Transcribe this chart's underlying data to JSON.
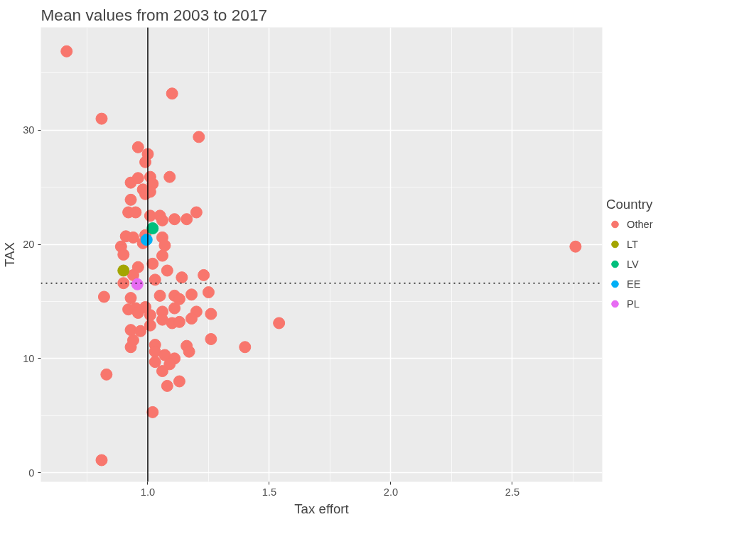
{
  "chart_data": {
    "type": "scatter",
    "title": "Mean values from 2003 to 2017",
    "xlabel": "Tax effort",
    "ylabel": "TAX",
    "legend_title": "Country",
    "xlim": [
      0.56,
      2.87
    ],
    "ylim": [
      -0.8,
      39.0
    ],
    "xticks": [
      {
        "value": 1.0,
        "label": "1.0"
      },
      {
        "value": 1.5,
        "label": "1.5"
      },
      {
        "value": 2.0,
        "label": "2.0"
      },
      {
        "value": 2.5,
        "label": "2.5"
      }
    ],
    "yticks": [
      0,
      10,
      20,
      30
    ],
    "grid": true,
    "legend": "right",
    "marker": "circle",
    "ref_lines": [
      {
        "axis": "x",
        "value": 1.0,
        "label": null,
        "color": "#000000",
        "line_style": "solid"
      },
      {
        "axis": "y",
        "value": 16.6,
        "label": null,
        "color": "#000000",
        "line_style": "dotted"
      }
    ],
    "series": [
      {
        "name": "Other",
        "color": "#f8766d",
        "x": [
          0.666,
          1.1,
          0.81,
          1.21,
          0.96,
          1.0,
          0.99,
          1.09,
          0.93,
          0.96,
          1.01,
          1.02,
          0.98,
          1.01,
          0.99,
          0.93,
          0.92,
          0.95,
          1.01,
          1.05,
          1.06,
          1.11,
          1.16,
          1.2,
          0.99,
          0.91,
          0.94,
          1.06,
          1.07,
          0.98,
          0.89,
          0.9,
          1.06,
          1.02,
          0.96,
          1.08,
          0.94,
          1.03,
          1.23,
          1.14,
          0.9,
          0.82,
          0.93,
          1.05,
          1.11,
          1.13,
          1.18,
          1.25,
          0.92,
          0.95,
          0.99,
          1.06,
          1.11,
          1.2,
          1.26,
          0.96,
          1.01,
          1.06,
          1.1,
          1.13,
          1.18,
          1.01,
          0.93,
          0.97,
          0.94,
          0.93,
          1.26,
          1.03,
          1.16,
          1.17,
          1.03,
          1.07,
          1.11,
          1.03,
          1.09,
          1.06,
          1.13,
          1.08,
          0.83,
          1.02,
          0.81,
          1.4,
          1.54,
          2.76
        ],
        "values": [
          36.9,
          33.2,
          31.0,
          29.4,
          28.5,
          27.9,
          27.2,
          25.9,
          25.4,
          25.8,
          25.9,
          25.3,
          24.8,
          24.6,
          24.4,
          23.9,
          22.8,
          22.8,
          22.5,
          22.5,
          22.1,
          22.2,
          22.2,
          22.8,
          20.8,
          20.7,
          20.6,
          20.6,
          19.9,
          20.1,
          19.8,
          19.1,
          19.0,
          18.3,
          18.0,
          17.7,
          17.3,
          16.9,
          17.3,
          17.1,
          16.6,
          15.4,
          15.3,
          15.5,
          15.5,
          15.2,
          15.6,
          15.8,
          14.3,
          14.4,
          14.5,
          14.1,
          14.4,
          14.1,
          13.9,
          14.0,
          13.8,
          13.4,
          13.1,
          13.2,
          13.5,
          12.9,
          12.5,
          12.4,
          11.6,
          11.0,
          11.7,
          11.2,
          11.1,
          10.6,
          10.6,
          10.3,
          10.0,
          9.7,
          9.5,
          8.9,
          8.0,
          7.6,
          8.6,
          5.3,
          1.1,
          11.0,
          13.1,
          19.8
        ]
      },
      {
        "name": "LT",
        "color": "#a3a500",
        "x": [
          0.9
        ],
        "values": [
          17.7
        ]
      },
      {
        "name": "LV",
        "color": "#00bf7d",
        "x": [
          1.02
        ],
        "values": [
          21.4
        ]
      },
      {
        "name": "EE",
        "color": "#00b0f6",
        "x": [
          0.995
        ],
        "values": [
          20.4
        ]
      },
      {
        "name": "PL",
        "color": "#e76bf3",
        "x": [
          0.957
        ],
        "values": [
          16.5
        ]
      }
    ]
  }
}
